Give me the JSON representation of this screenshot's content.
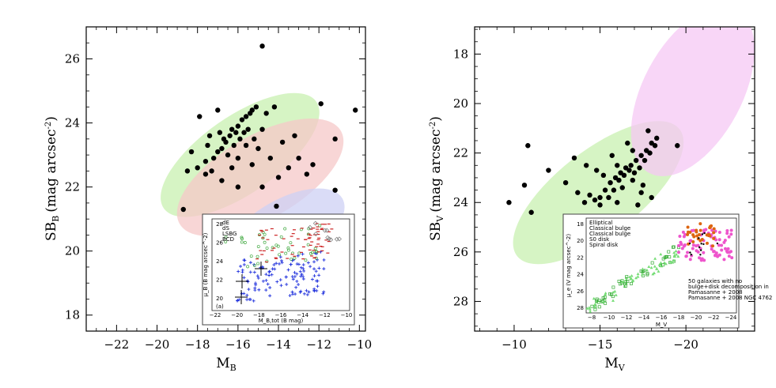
{
  "chart_data": [
    {
      "type": "scatter",
      "xlabel": "M_B",
      "ylabel": "SB_B (mag arcsec^-2)",
      "xlabel_main": "M",
      "xlabel_sub": "B",
      "ylabel_main": "SB",
      "ylabel_sub": "B",
      "ylabel_unit": "(mag arcsec",
      "ylabel_exp": "-2",
      "ylabel_close": ")",
      "xlim": [
        -23.5,
        -9.7
      ],
      "ylim": [
        17.5,
        27
      ],
      "x_ticks": [
        -22,
        -20,
        -18,
        -16,
        -14,
        -12,
        -10
      ],
      "x_tick_labels": [
        "−22",
        "−20",
        "−18",
        "−16",
        "−14",
        "−12",
        "−10"
      ],
      "y_ticks": [
        18,
        20,
        22,
        24,
        26
      ],
      "y_tick_labels": [
        "18",
        "20",
        "22",
        "24",
        "26"
      ],
      "regions": [
        {
          "name": "green",
          "color": "#c8f0b0",
          "cx": -15.9,
          "cy": 23.0,
          "rx": 4.6,
          "ry": 1.2,
          "angle_deg": -35
        },
        {
          "name": "red",
          "color": "#f6c8c8",
          "cx": -14.9,
          "cy": 22.3,
          "rx": 4.6,
          "ry": 1.3,
          "angle_deg": -30
        },
        {
          "name": "blue",
          "color": "#cdd0f4",
          "cx": -13.7,
          "cy": 20.6,
          "rx": 3.3,
          "ry": 1.0,
          "angle_deg": -30
        }
      ],
      "points": [
        [
          -14.8,
          26.4
        ],
        [
          -10.2,
          24.4
        ],
        [
          -11.9,
          24.6
        ],
        [
          -11.2,
          23.5
        ],
        [
          -11.2,
          21.9
        ],
        [
          -17.9,
          24.2
        ],
        [
          -18.7,
          21.3
        ],
        [
          -18.3,
          23.1
        ],
        [
          -18.5,
          22.5
        ],
        [
          -18.0,
          22.6
        ],
        [
          -17.6,
          22.4
        ],
        [
          -17.3,
          22.5
        ],
        [
          -17.6,
          22.8
        ],
        [
          -17.2,
          22.9
        ],
        [
          -17.0,
          23.1
        ],
        [
          -16.8,
          23.2
        ],
        [
          -16.6,
          23.4
        ],
        [
          -16.4,
          23.6
        ],
        [
          -16.3,
          23.8
        ],
        [
          -16.1,
          23.7
        ],
        [
          -16.0,
          23.9
        ],
        [
          -15.8,
          24.1
        ],
        [
          -15.6,
          24.2
        ],
        [
          -15.4,
          24.3
        ],
        [
          -15.3,
          24.4
        ],
        [
          -15.1,
          24.5
        ],
        [
          -15.9,
          23.5
        ],
        [
          -15.7,
          23.7
        ],
        [
          -16.2,
          23.3
        ],
        [
          -16.5,
          23.0
        ],
        [
          -16.0,
          22.9
        ],
        [
          -15.5,
          23.8
        ],
        [
          -15.2,
          23.5
        ],
        [
          -14.8,
          23.8
        ],
        [
          -14.6,
          24.3
        ],
        [
          -14.2,
          24.5
        ],
        [
          -17.5,
          23.3
        ],
        [
          -16.8,
          22.2
        ],
        [
          -16.0,
          22.0
        ],
        [
          -14.8,
          22.0
        ],
        [
          -14.1,
          21.4
        ],
        [
          -13.8,
          23.4
        ],
        [
          -13.2,
          23.6
        ],
        [
          -13.0,
          22.9
        ],
        [
          -13.5,
          22.6
        ],
        [
          -14.0,
          22.3
        ],
        [
          -14.4,
          22.9
        ],
        [
          -15.0,
          23.2
        ],
        [
          -17.0,
          24.4
        ],
        [
          -12.3,
          22.7
        ],
        [
          -12.6,
          22.4
        ],
        [
          -15.3,
          22.7
        ],
        [
          -16.9,
          23.7
        ],
        [
          -17.4,
          23.6
        ],
        [
          -16.3,
          22.6
        ],
        [
          -15.6,
          23.3
        ],
        [
          -16.7,
          23.5
        ]
      ],
      "inset": {
        "legend": [
          "dE",
          "dS",
          "LSBG",
          "BCD"
        ],
        "x_ticks_labels": [
          "−22",
          "−20",
          "−18",
          "−16",
          "−14",
          "−12",
          "−10"
        ],
        "y_ticks_labels": [
          "28",
          "26",
          "24",
          "22",
          "20"
        ],
        "xlabel": "M_B,tot (B mag)",
        "ylabel": "μ_B (B mag arcsec^-2)",
        "panel_label": "(a)"
      }
    },
    {
      "type": "scatter",
      "xlabel": "M_V",
      "ylabel": "SB_V (mag arcsec^-2)",
      "xlabel_main": "M",
      "xlabel_sub": "V",
      "ylabel_main": "SB",
      "ylabel_sub": "V",
      "ylabel_unit": "(mag arcsec",
      "ylabel_exp": "-2",
      "ylabel_close": ")",
      "xlim": [
        -7.7,
        -24.0
      ],
      "ylim": [
        29.2,
        16.9
      ],
      "x_ticks": [
        -10,
        -15,
        -20
      ],
      "x_tick_labels": [
        "−10",
        "−15",
        "−20"
      ],
      "y_ticks": [
        18,
        20,
        22,
        24,
        26,
        28
      ],
      "y_tick_labels": [
        "18",
        "20",
        "22",
        "24",
        "26",
        "28"
      ],
      "regions": [
        {
          "name": "green",
          "color": "#c8f0b0",
          "cx": -14.9,
          "cy": 23.6,
          "rx": 6.0,
          "ry": 1.7,
          "angle_deg": -38
        },
        {
          "name": "pink",
          "color": "#f6c8f4",
          "cx": -20.4,
          "cy": 19.5,
          "rx": 5.4,
          "ry": 2.0,
          "angle_deg": -62
        }
      ],
      "points": [
        [
          -9.7,
          24.0
        ],
        [
          -10.6,
          23.3
        ],
        [
          -11.0,
          24.4
        ],
        [
          -10.8,
          21.7
        ],
        [
          -12.0,
          22.7
        ],
        [
          -13.0,
          23.2
        ],
        [
          -13.7,
          23.6
        ],
        [
          -13.5,
          22.2
        ],
        [
          -14.1,
          24.0
        ],
        [
          -14.4,
          23.7
        ],
        [
          -14.7,
          23.9
        ],
        [
          -15.0,
          23.8
        ],
        [
          -15.3,
          23.5
        ],
        [
          -15.6,
          23.2
        ],
        [
          -15.9,
          23.0
        ],
        [
          -16.2,
          22.8
        ],
        [
          -16.5,
          22.6
        ],
        [
          -16.8,
          22.5
        ],
        [
          -17.1,
          22.3
        ],
        [
          -17.4,
          22.1
        ],
        [
          -17.7,
          21.9
        ],
        [
          -18.0,
          21.6
        ],
        [
          -18.3,
          21.4
        ],
        [
          -15.5,
          23.8
        ],
        [
          -15.8,
          23.5
        ],
        [
          -16.1,
          23.1
        ],
        [
          -16.4,
          22.9
        ],
        [
          -16.7,
          22.7
        ],
        [
          -17.0,
          22.8
        ],
        [
          -17.3,
          22.6
        ],
        [
          -16.0,
          22.5
        ],
        [
          -15.2,
          22.9
        ],
        [
          -14.8,
          22.7
        ],
        [
          -17.6,
          22.3
        ],
        [
          -17.9,
          22.0
        ],
        [
          -18.2,
          21.7
        ],
        [
          -16.3,
          23.4
        ],
        [
          -16.9,
          23.1
        ],
        [
          -17.5,
          23.3
        ],
        [
          -18.0,
          23.8
        ],
        [
          -17.2,
          24.1
        ],
        [
          -16.6,
          21.6
        ],
        [
          -17.8,
          21.1
        ],
        [
          -19.5,
          21.7
        ],
        [
          -14.2,
          22.5
        ],
        [
          -15.7,
          22.1
        ],
        [
          -16.9,
          21.9
        ],
        [
          -17.4,
          23.6
        ],
        [
          -15.0,
          24.1
        ],
        [
          -16.0,
          24.0
        ]
      ],
      "inset": {
        "legend": [
          "Elliptical",
          "Classical bulge",
          "Classical bulge",
          "S0 disk",
          "Spiral disk"
        ],
        "note": [
          "50 galaxies with no",
          "bulge+disk decomposition in",
          "Pamasanne + 2008",
          "Pamasanne + 2008 NGC 4762"
        ],
        "x_ticks_labels": [
          "−8",
          "−10",
          "−12",
          "−14",
          "−16",
          "−18",
          "−20",
          "−22",
          "−24"
        ],
        "y_ticks_labels": [
          "18",
          "20",
          "22",
          "24",
          "26",
          "28"
        ],
        "xlabel": "M_V",
        "ylabel": "μ_e (V mag arcsec^-2)"
      }
    }
  ]
}
